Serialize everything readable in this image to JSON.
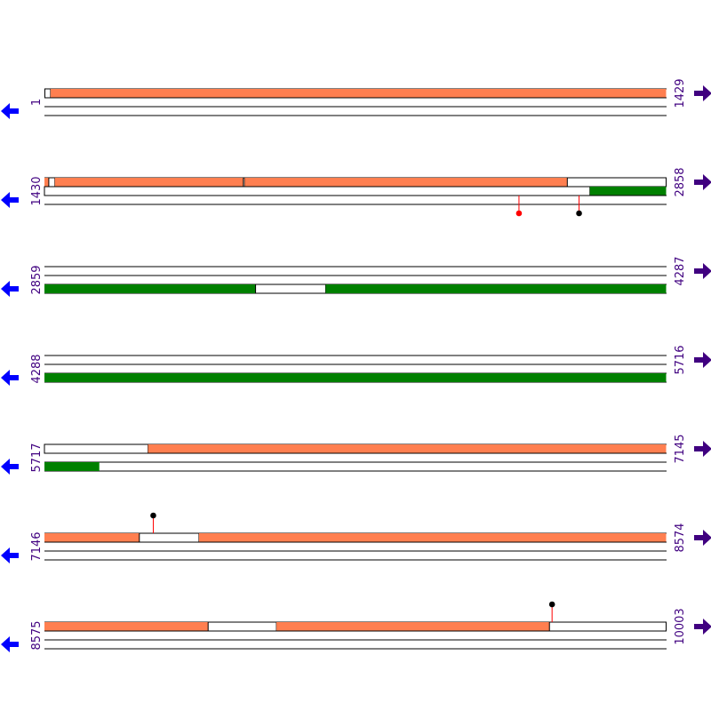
{
  "colors": {
    "orf_orange": "#ff7f50",
    "orf_green": "#008000",
    "strand_line": "#000000",
    "coord_text": "#400080",
    "arrow_reverse": "#0000ff",
    "arrow_forward": "#400080",
    "stem": "#ff0000",
    "site_red": "#ff0000",
    "site_black": "#000000"
  },
  "icons": {
    "forward": "right-arrow-icon",
    "reverse": "left-arrow-icon"
  },
  "rows": [
    {
      "start": "1",
      "end": "1429",
      "from": 1,
      "to": 1429,
      "tracks": [
        {
          "frame": "f1",
          "features": [
            {
              "from": 2,
              "to": 15,
              "open": true
            },
            {
              "from": 15,
              "to": 1429,
              "color": "orange"
            }
          ]
        },
        {
          "frame": "f2",
          "features": []
        },
        {
          "frame": "f3",
          "features": []
        }
      ],
      "sites": []
    },
    {
      "start": "1430",
      "end": "2858",
      "from": 1430,
      "to": 2858,
      "tracks": [
        {
          "frame": "f1",
          "features": [
            {
              "from": 1430,
              "to": 1440,
              "color": "orange"
            },
            {
              "from": 1440,
              "to": 1454,
              "open": true
            },
            {
              "from": 1454,
              "to": 1887,
              "color": "orange"
            },
            {
              "from": 1887,
              "to": 1890,
              "open": true
            },
            {
              "from": 1890,
              "to": 2631,
              "color": "orange"
            },
            {
              "from": 2631,
              "to": 2858,
              "open": true
            }
          ]
        },
        {
          "frame": "f2",
          "features": [
            {
              "from": 1430,
              "to": 2683,
              "open": true
            },
            {
              "from": 2683,
              "to": 2858,
              "color": "green"
            }
          ]
        },
        {
          "frame": "f3",
          "features": []
        }
      ],
      "sites": [
        {
          "pos": 2520,
          "track": 1,
          "dir": "down",
          "color": "red"
        },
        {
          "pos": 2658,
          "track": 1,
          "dir": "down",
          "color": "black"
        }
      ]
    },
    {
      "start": "2859",
      "end": "4287",
      "from": 2859,
      "to": 4287,
      "tracks": [
        {
          "frame": "f1",
          "features": []
        },
        {
          "frame": "f2",
          "features": []
        },
        {
          "frame": "f3",
          "features": [
            {
              "from": 2859,
              "to": 3344,
              "color": "green"
            },
            {
              "from": 3344,
              "to": 3505,
              "open": true
            },
            {
              "from": 3505,
              "to": 4287,
              "color": "green"
            }
          ]
        }
      ],
      "sites": []
    },
    {
      "start": "4288",
      "end": "5716",
      "from": 4288,
      "to": 5716,
      "tracks": [
        {
          "frame": "f1",
          "features": []
        },
        {
          "frame": "f2",
          "features": []
        },
        {
          "frame": "f3",
          "features": [
            {
              "from": 4288,
              "to": 5716,
              "color": "green"
            }
          ]
        }
      ],
      "sites": []
    },
    {
      "start": "5717",
      "end": "7145",
      "from": 5717,
      "to": 7145,
      "tracks": [
        {
          "frame": "f1",
          "features": [
            {
              "from": 5717,
              "to": 5955,
              "open": true
            },
            {
              "from": 5955,
              "to": 7145,
              "color": "orange"
            }
          ]
        },
        {
          "frame": "f2",
          "features": []
        },
        {
          "frame": "f3",
          "features": [
            {
              "from": 5717,
              "to": 5843,
              "color": "green"
            }
          ]
        }
      ],
      "sites": []
    },
    {
      "start": "7146",
      "end": "8574",
      "from": 7146,
      "to": 8574,
      "tracks": [
        {
          "frame": "f1",
          "features": [
            {
              "from": 7146,
              "to": 7364,
              "color": "orange"
            },
            {
              "from": 7364,
              "to": 7501,
              "open": true
            },
            {
              "from": 7501,
              "to": 8574,
              "color": "orange"
            }
          ]
        },
        {
          "frame": "f2",
          "features": []
        },
        {
          "frame": "f3",
          "features": []
        }
      ],
      "sites": [
        {
          "pos": 7396,
          "track": 0,
          "dir": "up",
          "color": "black"
        }
      ]
    },
    {
      "start": "8575",
      "end": "10003",
      "from": 8575,
      "to": 10003,
      "tracks": [
        {
          "frame": "f1",
          "features": [
            {
              "from": 8575,
              "to": 8951,
              "color": "orange"
            },
            {
              "from": 8951,
              "to": 9108,
              "open": true
            },
            {
              "from": 9108,
              "to": 9735,
              "color": "orange"
            },
            {
              "from": 9735,
              "to": 10003,
              "open": true
            }
          ]
        },
        {
          "frame": "f2",
          "features": []
        },
        {
          "frame": "f3",
          "features": []
        }
      ],
      "sites": [
        {
          "pos": 9741,
          "track": 0,
          "dir": "up",
          "color": "black"
        }
      ]
    }
  ]
}
